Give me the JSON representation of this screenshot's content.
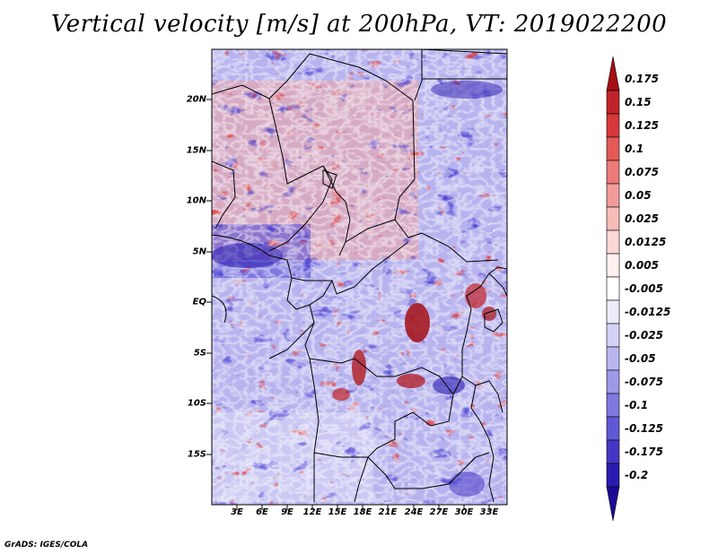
{
  "title": "Vertical velocity [m/s] at 200hPa, VT: 2019022200",
  "credit": "GrADS: IGES/COLA",
  "map": {
    "lat_ticks": [
      "20N",
      "15N",
      "10N",
      "5N",
      "EQ",
      "5S",
      "10S",
      "15S"
    ],
    "lon_ticks": [
      "3E",
      "6E",
      "9E",
      "12E",
      "15E",
      "18E",
      "21E",
      "24E",
      "27E",
      "30E",
      "33E"
    ]
  },
  "colorbar": {
    "labels": [
      "0.175",
      "0.15",
      "0.125",
      "0.1",
      "0.075",
      "0.05",
      "0.025",
      "0.0125",
      "0.005",
      "-0.005",
      "-0.0125",
      "-0.025",
      "-0.05",
      "-0.075",
      "-0.1",
      "-0.125",
      "-0.175",
      "-0.2"
    ],
    "colors": [
      "#a50f15",
      "#c0242a",
      "#d7383a",
      "#e35a58",
      "#ec7b78",
      "#f29b98",
      "#f7bbb8",
      "#fbd8d6",
      "#fdf0ef",
      "#ffffff",
      "#ecebfb",
      "#d4d2f6",
      "#b9b6ef",
      "#9d98e7",
      "#7f78df",
      "#6158d4",
      "#4537c6",
      "#2a1bb0",
      "#1a0a96"
    ]
  }
}
